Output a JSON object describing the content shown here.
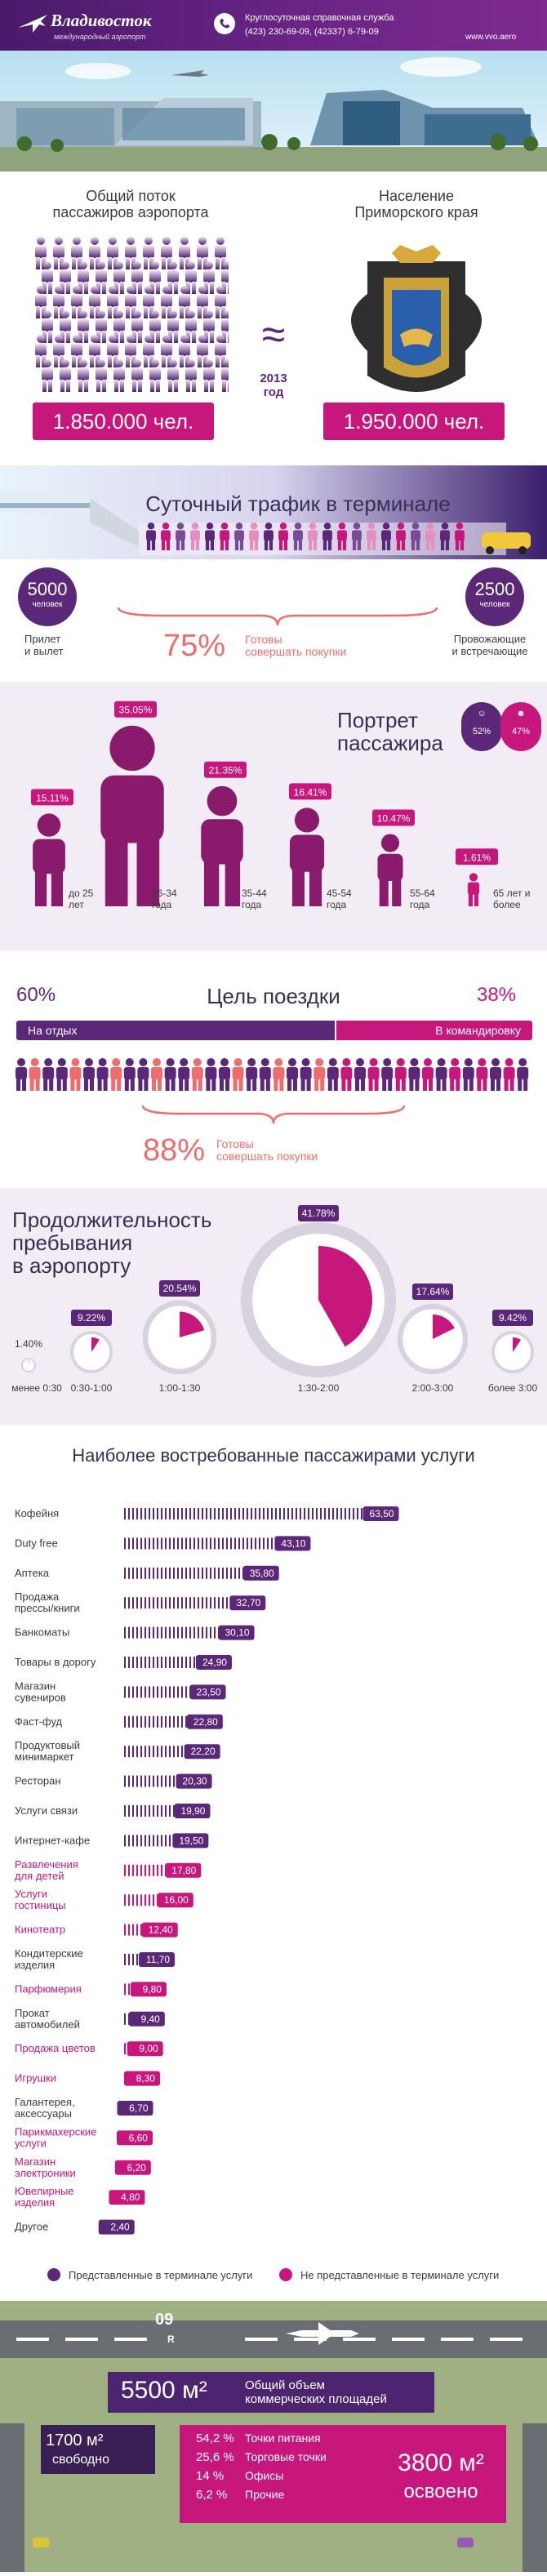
{
  "header": {
    "logo_title": "Владивосток",
    "logo_subtitle": "международный аэропорт",
    "service_label": "Круглосуточная справочная служба",
    "phones": "(423) 230-69-09, (42337) 6-79-09",
    "website": "www.vvo.aero"
  },
  "comparison": {
    "left_title_line1": "Общий поток",
    "left_title_line2": "пассажиров аэропорта",
    "right_title_line1": "Население",
    "right_title_line2": "Приморского края",
    "approx_symbol": "≈",
    "year": "2013",
    "year_label": "год",
    "left_value": "1.850.000 чел.",
    "right_value": "1.950.000 чел."
  },
  "daily_traffic": {
    "title": "Суточный трафик в терминале",
    "left_count": "5000",
    "left_unit": "человек",
    "left_caption_line1": "Прилет",
    "left_caption_line2": "и вылет",
    "right_count": "2500",
    "right_unit": "человек",
    "right_caption_line1": "Провожающие",
    "right_caption_line2": "и встречающие",
    "percent": "75%",
    "percent_text_line1": "Готовы",
    "percent_text_line2": "совершать покупки"
  },
  "portrait": {
    "title_line1": "Портрет",
    "title_line2": "пассажира",
    "female_pct": "52%",
    "male_pct": "47%"
  },
  "trip_purpose": {
    "title": "Цель поездки",
    "left_pct": "60%",
    "right_pct": "38%",
    "left_label": "На отдых",
    "right_label": "В командировку",
    "percent": "88%",
    "percent_text_line1": "Готовы",
    "percent_text_line2": "совершать покупки"
  },
  "duration": {
    "title_line1": "Продолжительность",
    "title_line2": "пребывания",
    "title_line3": "в аэропорту"
  },
  "services_title": "Наиболее востребованные пассажирами услуги",
  "legend": {
    "present": "Представленные в терминале услуги",
    "absent": "Не представленные в терминале услуги"
  },
  "area": {
    "total": "5500 м²",
    "total_caption_line1": "Общий объем",
    "total_caption_line2": "коммерческих площадей",
    "free_value": "1700 м²",
    "free_label": "свободно",
    "used_value": "3800 м²",
    "used_label": "освоено",
    "breakdown": [
      {
        "pct": "54,2 %",
        "label": "Точки питания"
      },
      {
        "pct": "25,6 %",
        "label": "Торговые точки"
      },
      {
        "pct": "14 %",
        "label": "Офисы"
      },
      {
        "pct": "6,2 %",
        "label": "Прочие"
      }
    ],
    "runway_marks": "09",
    "runway_letter": "R"
  },
  "colors": {
    "purple": "#5b2879",
    "magenta": "#c8177c",
    "coral": "#f06c6c"
  },
  "chart_data": [
    {
      "type": "bar",
      "name": "age-portrait",
      "categories": [
        "до 25 лет",
        "26-34 года",
        "35-44 года",
        "45-54 года",
        "55-64 года",
        "65 лет и более"
      ],
      "values": [
        15.11,
        35.05,
        21.35,
        16.41,
        10.47,
        1.61
      ],
      "labels": [
        "15.11%",
        "35.05%",
        "21.35%",
        "16.41%",
        "10.47%",
        "1.61%"
      ]
    },
    {
      "type": "pie",
      "name": "stay-duration",
      "categories": [
        "менее 0:30",
        "0:30-1:00",
        "1:00-1:30",
        "1:30-2:00",
        "2:00-3:00",
        "более 3:00"
      ],
      "values": [
        1.4,
        9.22,
        20.54,
        41.78,
        17.64,
        9.42
      ],
      "labels": [
        "1.40%",
        "9.22%",
        "20.54%",
        "41.78%",
        "17.64%",
        "9.42%"
      ]
    },
    {
      "type": "bar",
      "name": "services",
      "categories": [
        "Кофейня",
        "Duty free",
        "Аптека",
        "Продажа прессы/книги",
        "Банкоматы",
        "Товары в дорогу",
        "Магазин сувениров",
        "Фаст-фуд",
        "Продуктовый минимаркет",
        "Ресторан",
        "Услуги связи",
        "Интернет-кафе",
        "Развлечения для детей",
        "Услуги гостиницы",
        "Кинотеатр",
        "Кондитерские изделия",
        "Парфюмерия",
        "Прокат автомобилей",
        "Продажа цветов",
        "Игрушки",
        "Галантерея, аксессуары",
        "Парикмахерские услуги",
        "Магазин электроники",
        "Ювелирные изделия",
        "Другое"
      ],
      "values": [
        63.5,
        43.1,
        35.8,
        32.7,
        30.1,
        24.9,
        23.5,
        22.8,
        22.2,
        20.3,
        19.9,
        19.5,
        17.8,
        16.0,
        12.4,
        11.7,
        9.8,
        9.4,
        9.0,
        8.3,
        6.7,
        6.6,
        6.2,
        4.8,
        2.4
      ],
      "labels": [
        "63,50",
        "43,10",
        "35,80",
        "32,70",
        "30,10",
        "24,90",
        "23,50",
        "22,80",
        "22,20",
        "20,30",
        "19,90",
        "19,50",
        "17,80",
        "16,00",
        "12,40",
        "11,70",
        "9,80",
        "9,40",
        "9,00",
        "8,30",
        "6,70",
        "6,60",
        "6,20",
        "4,80",
        "2,40"
      ],
      "represented": [
        true,
        true,
        true,
        true,
        true,
        true,
        true,
        true,
        true,
        true,
        true,
        true,
        false,
        false,
        false,
        true,
        false,
        true,
        false,
        false,
        true,
        false,
        false,
        false,
        true
      ]
    }
  ]
}
